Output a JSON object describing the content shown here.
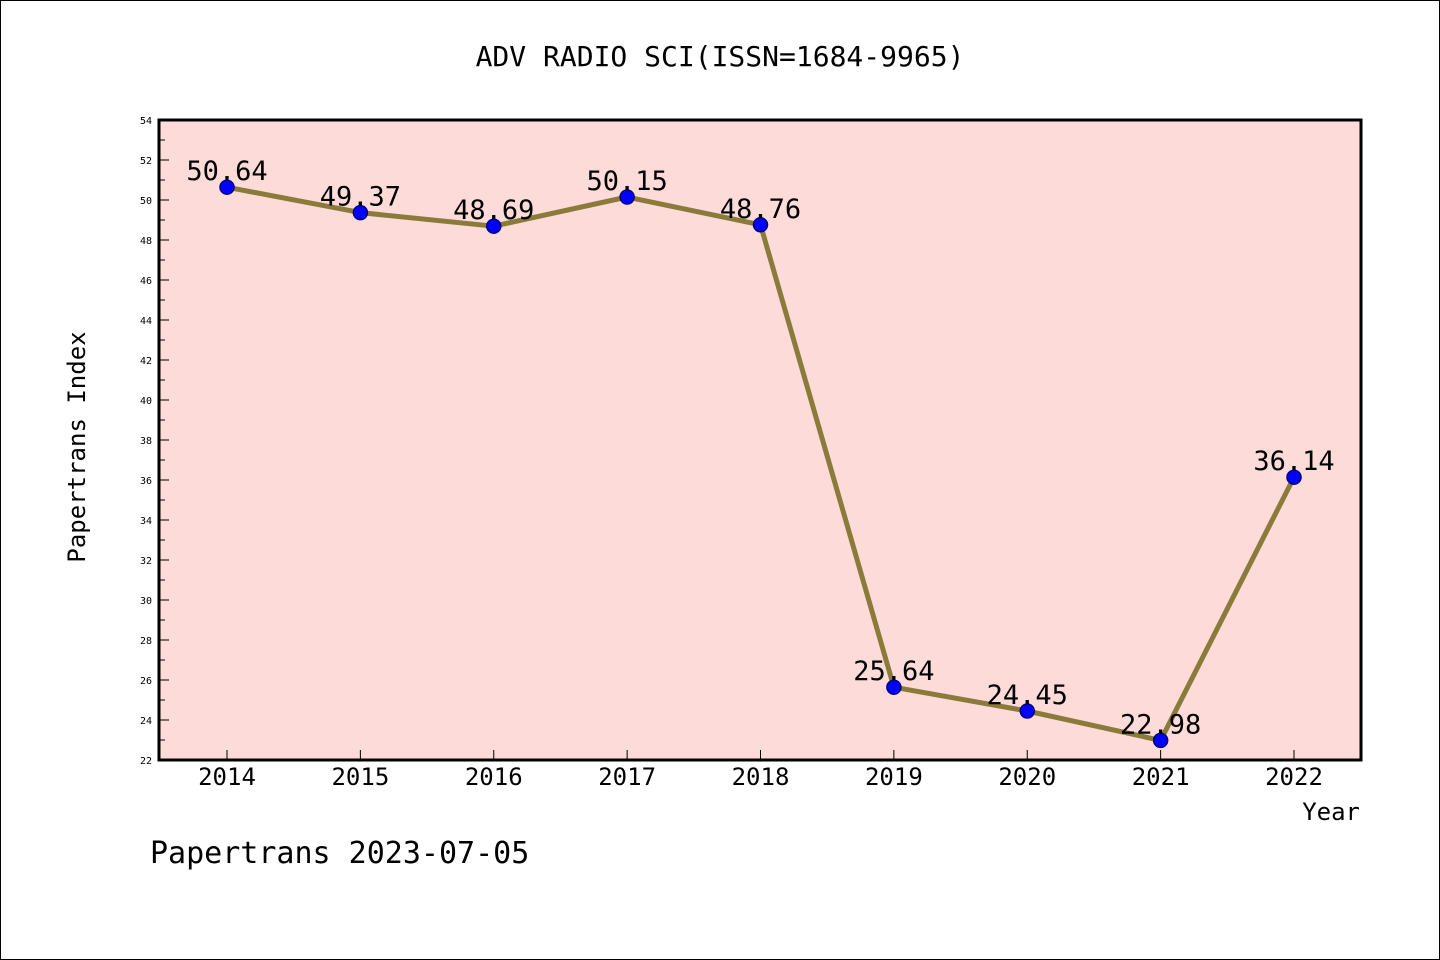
{
  "chart_data": {
    "type": "line",
    "title": "ADV RADIO SCI(ISSN=1684-9965)",
    "xlabel": "Year",
    "ylabel": "Papertrans Index",
    "categories": [
      "2014",
      "2015",
      "2016",
      "2017",
      "2018",
      "2019",
      "2020",
      "2021",
      "2022"
    ],
    "series": [
      {
        "values": [
          50.64,
          49.37,
          48.69,
          50.15,
          48.76,
          25.64,
          24.45,
          22.98,
          36.14
        ],
        "labels": [
          "50.64",
          "49.37",
          "48.69",
          "50.15",
          "48.76",
          "25.64",
          "24.45",
          "22.98",
          "36.14"
        ]
      }
    ],
    "ylim": [
      22,
      54
    ],
    "yticks": [
      "22",
      "24",
      "26",
      "28",
      "30",
      "32",
      "34",
      "36",
      "38",
      "40",
      "42",
      "44",
      "46",
      "48",
      "50",
      "52",
      "54"
    ],
    "grid": false,
    "footer": "Papertrans 2023-07-05",
    "colors": {
      "plot_background": "#fddbd8",
      "line": "#8b7b3a",
      "marker": "#0000ff",
      "marker_edge": "#000080"
    }
  }
}
